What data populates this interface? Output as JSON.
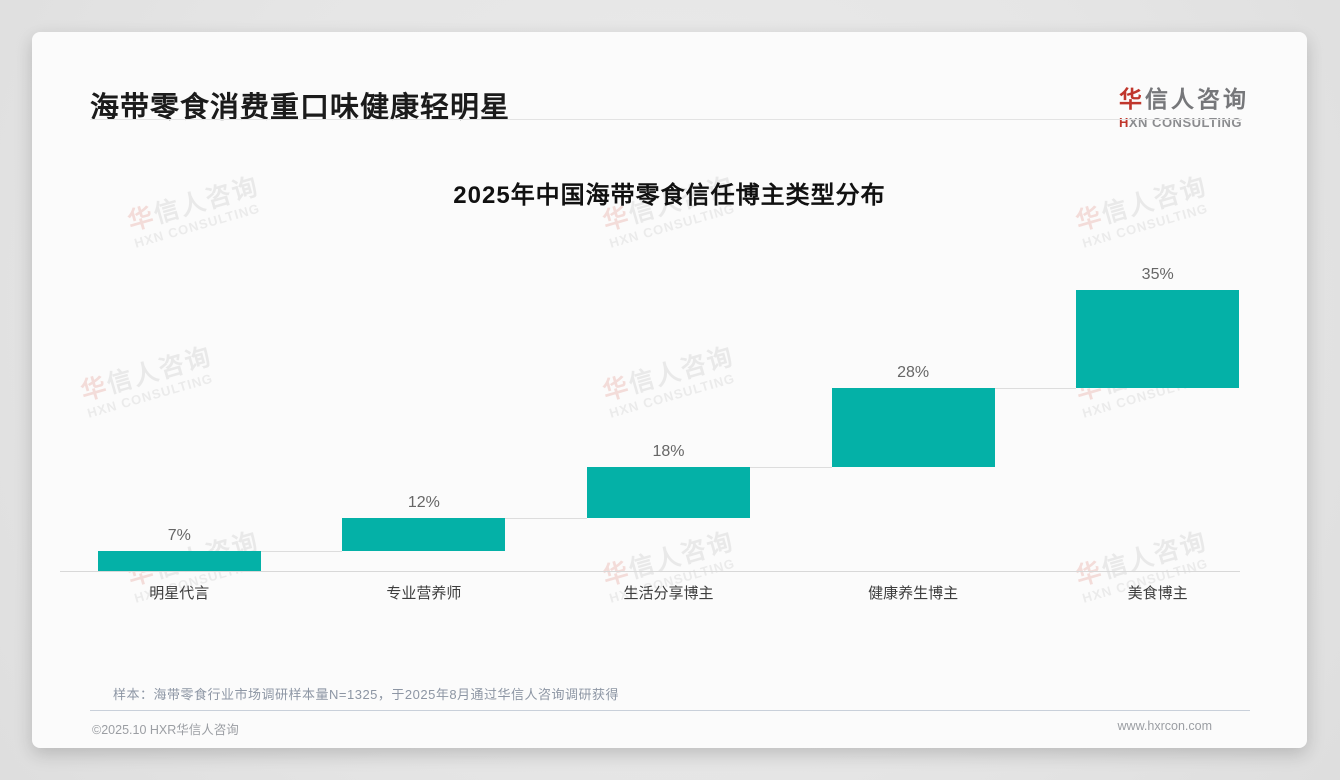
{
  "page": {
    "title": "海带零食消费重口味健康轻明星",
    "logo": {
      "cn_accent": "华",
      "cn_rest": "信人咨询",
      "en_accent": "H",
      "en_rest": "XN CONSULTING"
    },
    "sample_note": "样本：海带零食行业市场调研样本量N=1325，于2025年8月通过华信人咨询调研获得",
    "footer": {
      "copyright": "©2025.10 HXR华信人咨询",
      "website": "www.hxrcon.com"
    }
  },
  "watermark": {
    "line1_accent": "华",
    "line1_rest": "信人咨询",
    "line2": "HXN CONSULTING"
  },
  "chart_data": {
    "type": "bar",
    "subtype": "waterfall",
    "title": "2025年中国海带零食信任博主类型分布",
    "categories": [
      "明星代言",
      "专业营养师",
      "生活分享博主",
      "健康养生博主",
      "美食博主"
    ],
    "values": [
      7,
      12,
      18,
      28,
      35
    ],
    "data_labels": [
      "7%",
      "12%",
      "18%",
      "28%",
      "35%"
    ],
    "cumulative_start": [
      0,
      7,
      19,
      37,
      65
    ],
    "unit": "%",
    "ylim": [
      0,
      100
    ],
    "bar_color": "#04b1a7",
    "grid": false,
    "legend": false,
    "orientation": "vertical"
  }
}
